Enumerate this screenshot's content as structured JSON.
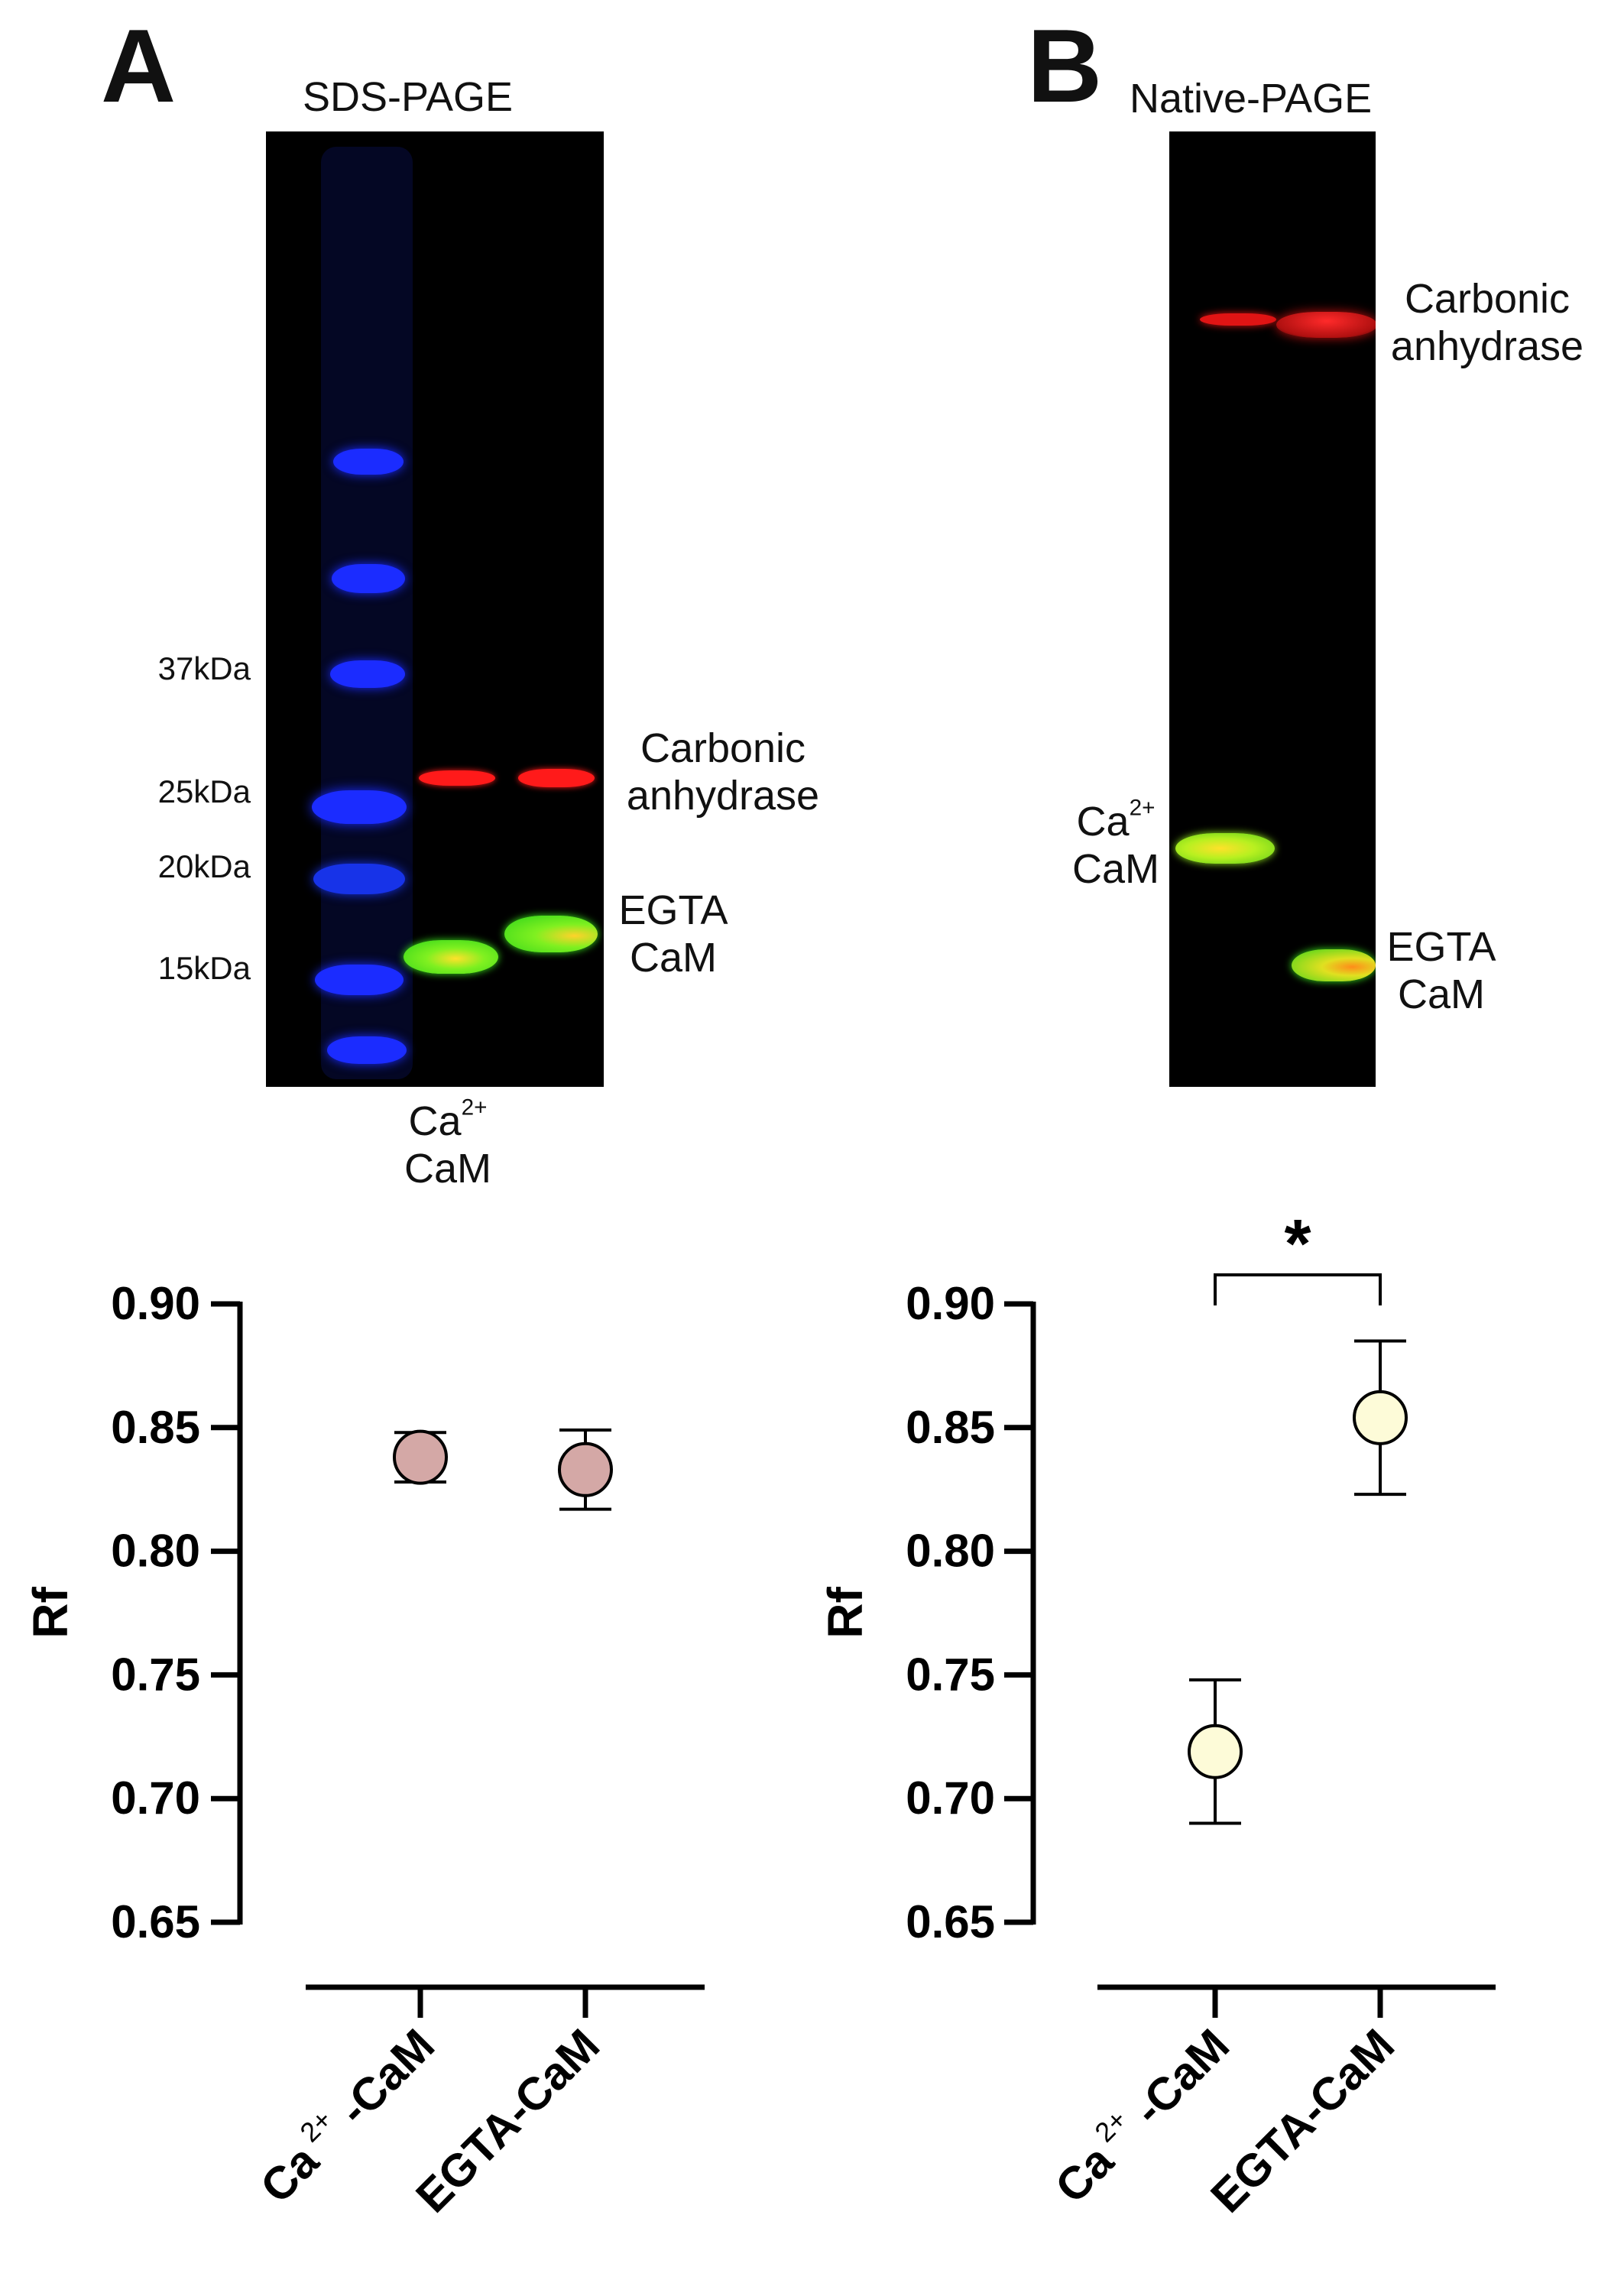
{
  "panel_a": {
    "letter": "A",
    "gel_title": "SDS-PAGE",
    "markers": [
      "37kDa",
      "25kDa",
      "20kDa",
      "15kDa"
    ],
    "band_labels": {
      "carbonic_line1": "Carbonic",
      "carbonic_line2": "anhydrase",
      "egta_line1": "EGTA",
      "egta_line2": "CaM",
      "ca_prefix": "Ca",
      "ca_sup": "2+",
      "ca_line2": "CaM"
    }
  },
  "panel_b": {
    "letter": "B",
    "gel_title": "Native-PAGE",
    "band_labels": {
      "carbonic_line1": "Carbonic",
      "carbonic_line2": "anhydrase",
      "ca_prefix": "Ca",
      "ca_sup": "2+",
      "ca_line2": "CaM",
      "egta_line1": "EGTA",
      "egta_line2": "CaM"
    }
  },
  "colors": {
    "sds_marker": "#d4a8a6",
    "native_marker": "#fdfbd8",
    "axis": "#000000",
    "ladder": "#1a2bff",
    "carbonic_band": "#ff1a1a",
    "cam_band": "#39e01b"
  },
  "chart_data": [
    {
      "type": "scatter",
      "title": "",
      "xlabel": "",
      "ylabel": "Rf",
      "ylim": [
        0.65,
        0.9
      ],
      "yticks": [
        "0.90",
        "0.85",
        "0.80",
        "0.75",
        "0.70",
        "0.65"
      ],
      "categories": [
        "Ca2+-CaM",
        "EGTA-CaM"
      ],
      "category_labels": [
        {
          "prefix": "Ca",
          "sup": "2+",
          "suffix": " -CaM"
        },
        {
          "prefix": "EGTA-CaM",
          "sup": "",
          "suffix": ""
        }
      ],
      "values": [
        0.838,
        0.833
      ],
      "err_low": [
        0.828,
        0.817
      ],
      "err_high": [
        0.848,
        0.849
      ],
      "significance": ""
    },
    {
      "type": "scatter",
      "title": "",
      "xlabel": "",
      "ylabel": "Rf",
      "ylim": [
        0.65,
        0.9
      ],
      "yticks": [
        "0.90",
        "0.85",
        "0.80",
        "0.75",
        "0.70",
        "0.65"
      ],
      "categories": [
        "Ca2+-CaM",
        "EGTA-CaM"
      ],
      "category_labels": [
        {
          "prefix": "Ca",
          "sup": "2+",
          "suffix": " -CaM"
        },
        {
          "prefix": "EGTA-CaM",
          "sup": "",
          "suffix": ""
        }
      ],
      "values": [
        0.719,
        0.854
      ],
      "err_low": [
        0.69,
        0.823
      ],
      "err_high": [
        0.748,
        0.885
      ],
      "significance": "*"
    }
  ]
}
